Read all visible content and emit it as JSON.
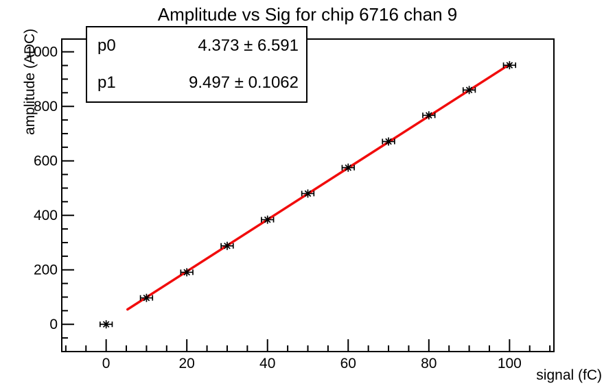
{
  "title": "Amplitude vs Sig for chip 6716 chan 9",
  "stats_box": {
    "rows": [
      {
        "label": "p0",
        "value": "4.373 ± 6.591"
      },
      {
        "label": "p1",
        "value": "9.497 ± 0.1062"
      }
    ]
  },
  "chart_data": {
    "type": "scatter",
    "title": "Amplitude vs Sig for chip 6716 chan 9",
    "xlabel": "signal (fC)",
    "ylabel": "amplitude (ADC)",
    "x": [
      0,
      10,
      20,
      30,
      40,
      50,
      60,
      70,
      80,
      90,
      100
    ],
    "y": [
      0,
      97,
      191,
      288,
      384,
      480,
      575,
      671,
      767,
      860,
      951
    ],
    "x_error": 1.5,
    "marker": "asterisk-with-x-error-bar",
    "marker_color": "#000000",
    "fit": {
      "type": "linear",
      "p0": 4.373,
      "p0_err": 6.591,
      "p1": 9.497,
      "p1_err": 0.1062,
      "x_range": [
        5.3,
        100
      ],
      "color": "#f10c0c"
    },
    "xlim": [
      -11,
      111
    ],
    "ylim": [
      -100,
      1047
    ],
    "x_major_ticks": [
      0,
      20,
      40,
      60,
      80,
      100
    ],
    "x_minor_step": 5,
    "y_major_ticks": [
      0,
      200,
      400,
      600,
      800,
      1000
    ],
    "y_minor_step": 50,
    "grid": false,
    "legend": "none",
    "frame_color": "#000000",
    "background": "#ffffff"
  }
}
